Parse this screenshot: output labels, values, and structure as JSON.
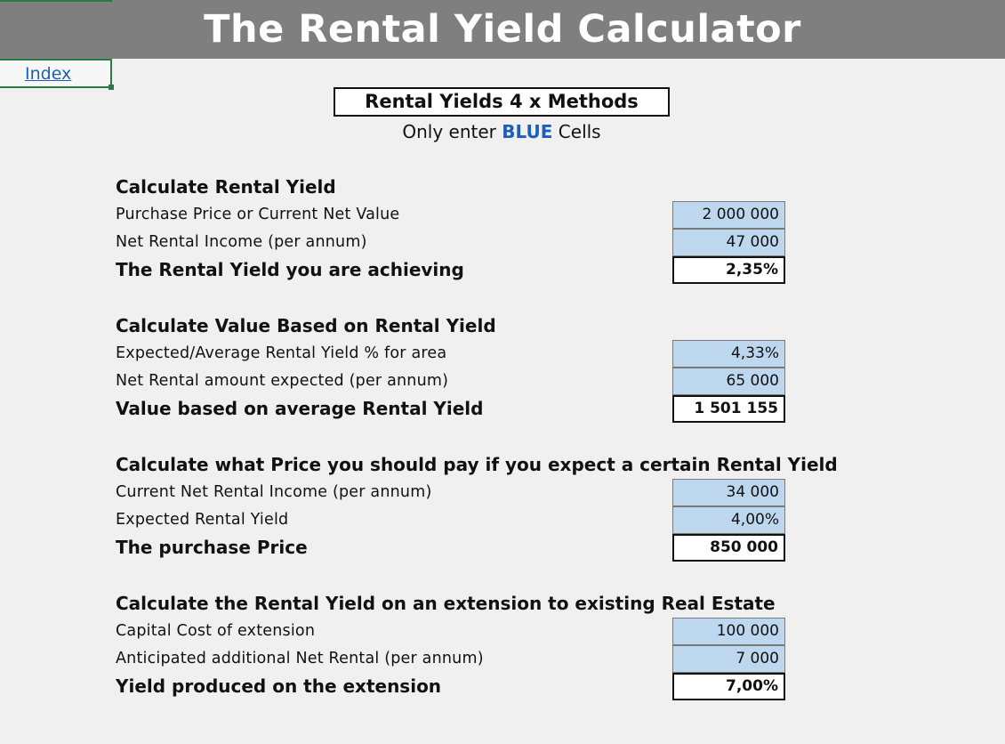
{
  "title": "The Rental Yield Calculator",
  "index_link": "Index",
  "methods_title": "Rental Yields 4 x Methods",
  "instruction": {
    "prefix": "Only enter ",
    "highlight": "BLUE",
    "suffix": " Cells"
  },
  "colors": {
    "banner": "#7f7f7f",
    "input_cell": "#bdd7ee",
    "highlight_text": "#1f5fb8",
    "selection_border": "#2a7a46"
  },
  "sections": [
    {
      "heading": "Calculate Rental Yield",
      "rows": [
        {
          "label": "Purchase Price or Current Net Value",
          "value": "2 000 000"
        },
        {
          "label": "Net Rental Income (per annum)",
          "value": "47 000"
        },
        {
          "label": "The Rental Yield you are achieving",
          "value": "2,35%"
        }
      ]
    },
    {
      "heading": "Calculate Value Based on Rental Yield",
      "rows": [
        {
          "label": "Expected/Average Rental Yield % for area",
          "value": "4,33%"
        },
        {
          "label": "Net Rental amount expected (per annum)",
          "value": "65 000"
        },
        {
          "label": "Value based on average Rental Yield",
          "value": "1 501 155"
        }
      ]
    },
    {
      "heading": "Calculate what Price you should pay if you expect a certain Rental Yield",
      "rows": [
        {
          "label": "Current Net Rental Income (per annum)",
          "value": "34 000"
        },
        {
          "label": "Expected Rental Yield",
          "value": "4,00%"
        },
        {
          "label": "The purchase Price",
          "value": "850 000"
        }
      ]
    },
    {
      "heading": "Calculate the Rental Yield on an extension to existing Real Estate",
      "rows": [
        {
          "label": "Capital Cost of extension",
          "value": "100 000"
        },
        {
          "label": "Anticipated additional Net Rental (per annum)",
          "value": "7 000"
        },
        {
          "label": "Yield produced on the extension",
          "value": "7,00%"
        }
      ]
    }
  ]
}
